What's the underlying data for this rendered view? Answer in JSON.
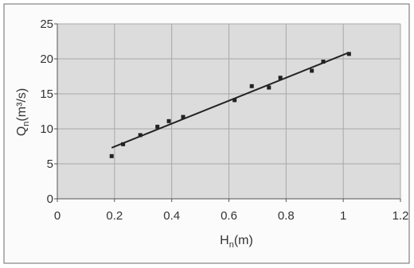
{
  "chart_data": {
    "type": "scatter",
    "title": "",
    "xlabel": "H",
    "xlabel_sub": "n",
    "xlabel_unit": "(m)",
    "ylabel": "Q",
    "ylabel_sub": "n",
    "ylabel_unit": "(m³/s)",
    "xlim": [
      0,
      1.2
    ],
    "ylim": [
      0,
      25
    ],
    "x_ticks": [
      "0",
      "0.2",
      "0.4",
      "0.6",
      "0.8",
      "1",
      "1.2"
    ],
    "y_ticks": [
      "0",
      "5",
      "10",
      "15",
      "20",
      "25"
    ],
    "grid": true,
    "legend": "none",
    "series": [
      {
        "type": "scatter",
        "x": [
          0.19,
          0.23,
          0.29,
          0.35,
          0.39,
          0.44,
          0.62,
          0.68,
          0.74,
          0.78,
          0.89,
          0.93,
          1.02
        ],
        "y": [
          6.1,
          7.8,
          9.1,
          10.3,
          11.1,
          11.7,
          14.1,
          16.1,
          15.9,
          17.3,
          18.3,
          19.6,
          20.7
        ]
      },
      {
        "type": "line",
        "x": [
          0.19,
          1.02
        ],
        "y": [
          7.3,
          20.9
        ]
      }
    ]
  }
}
